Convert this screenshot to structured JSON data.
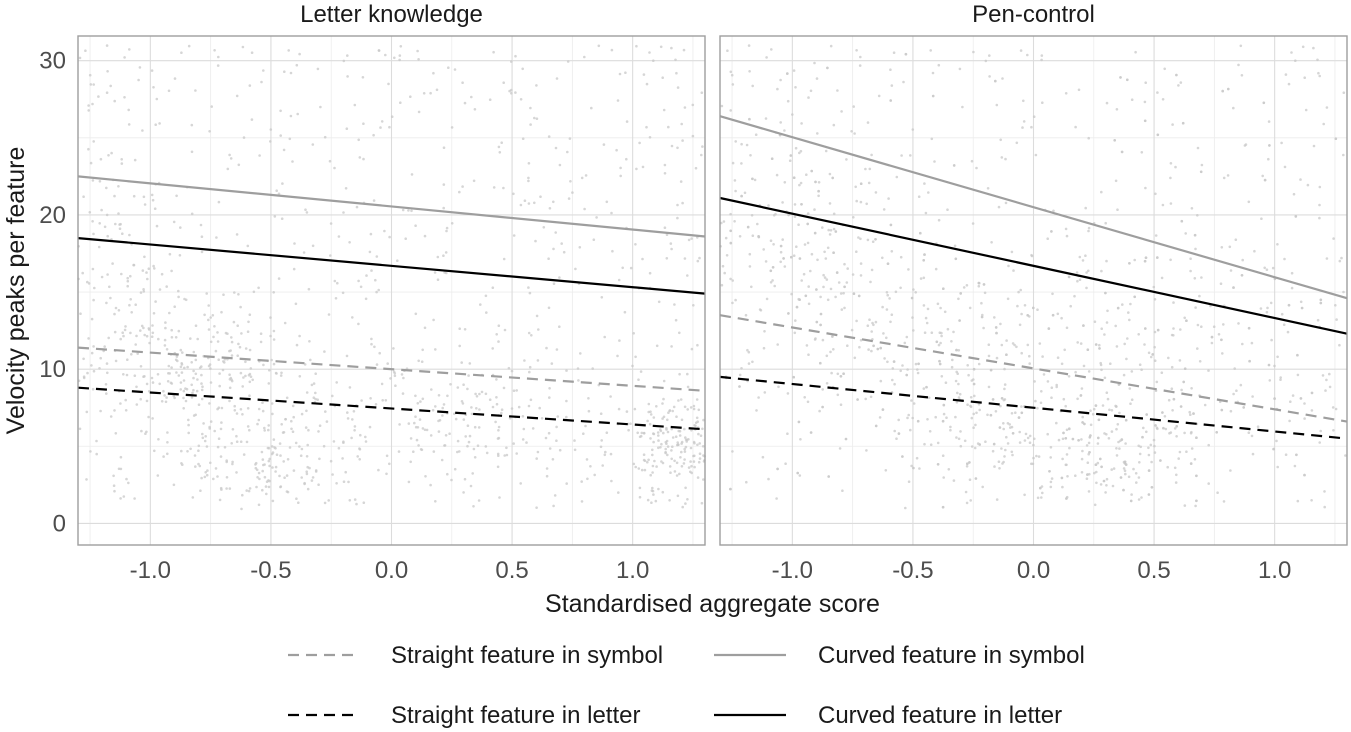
{
  "chart_data": {
    "type": "line",
    "xlabel": "Standardised aggregate score",
    "ylabel": "Velocity peaks per feature",
    "xlim": [
      -1.3,
      1.3
    ],
    "ylim": [
      -1.4,
      31.6
    ],
    "x_ticks": [
      -1.0,
      -0.5,
      0.0,
      0.5,
      1.0
    ],
    "x_tick_labels": [
      "-1.0",
      "-0.5",
      "0.0",
      "0.5",
      "1.0"
    ],
    "y_ticks": [
      0,
      10,
      20,
      30
    ],
    "y_tick_labels": [
      "0",
      "10",
      "20",
      "30"
    ],
    "grid": true,
    "legend_position": "bottom",
    "background_points": "light grey jittered raw observations",
    "colors": {
      "symbol": "#9e9e9e",
      "letter": "#000000",
      "points": "#c8c8c8"
    },
    "legend": [
      {
        "label": "Straight feature in symbol",
        "color": "#9e9e9e",
        "dash": "dashed"
      },
      {
        "label": "Curved feature in symbol",
        "color": "#9e9e9e",
        "dash": "solid"
      },
      {
        "label": "Straight feature in letter",
        "color": "#000000",
        "dash": "dashed"
      },
      {
        "label": "Curved feature in letter",
        "color": "#000000",
        "dash": "solid"
      }
    ],
    "panels": [
      {
        "title": "Letter knowledge",
        "series": [
          {
            "name": "Curved feature in symbol",
            "x": [
              -1.3,
              1.3
            ],
            "y": [
              22.5,
              18.6
            ]
          },
          {
            "name": "Curved feature in letter",
            "x": [
              -1.3,
              1.3
            ],
            "y": [
              18.5,
              14.9
            ]
          },
          {
            "name": "Straight feature in symbol",
            "x": [
              -1.3,
              1.3
            ],
            "y": [
              11.4,
              8.6
            ]
          },
          {
            "name": "Straight feature in letter",
            "x": [
              -1.3,
              1.3
            ],
            "y": [
              8.8,
              6.1
            ]
          }
        ]
      },
      {
        "title": "Pen-control",
        "series": [
          {
            "name": "Curved feature in symbol",
            "x": [
              -1.3,
              1.3
            ],
            "y": [
              26.4,
              14.6
            ]
          },
          {
            "name": "Curved feature in letter",
            "x": [
              -1.3,
              1.3
            ],
            "y": [
              21.1,
              12.3
            ]
          },
          {
            "name": "Straight feature in symbol",
            "x": [
              -1.3,
              1.3
            ],
            "y": [
              13.5,
              6.6
            ]
          },
          {
            "name": "Straight feature in letter",
            "x": [
              -1.3,
              1.3
            ],
            "y": [
              9.5,
              5.5
            ]
          }
        ]
      }
    ]
  }
}
